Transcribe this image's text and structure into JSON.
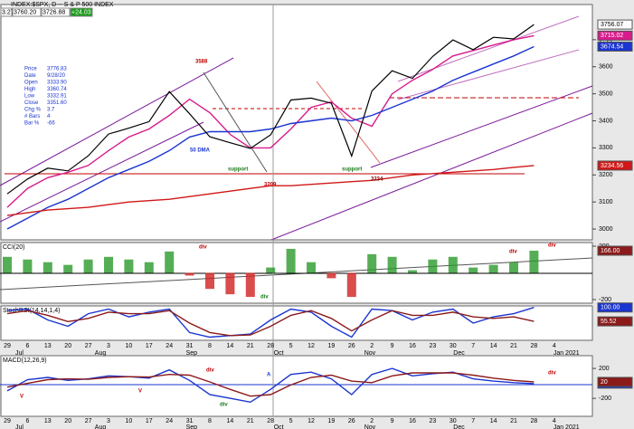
{
  "chart_data": {
    "type": "line",
    "title": "INDEX:$SPX, D -- S & P 500 INDEX",
    "quote": [
      "3.27",
      "3760.20",
      "3726.88",
      "+24.03"
    ],
    "info": [
      [
        "Price",
        "3776.83"
      ],
      [
        "Date",
        "9/28/20"
      ],
      [
        "Open",
        "3333.90"
      ],
      [
        "High",
        "3360.74"
      ],
      [
        "Low",
        "3332.91"
      ],
      [
        "Close",
        "3351.60"
      ],
      [
        "Chg %",
        "3.7"
      ],
      [
        "# Bars",
        "4"
      ],
      [
        "Bar %",
        "-66"
      ]
    ],
    "categories": [
      "29",
      "6",
      "13",
      "20",
      "27",
      "3",
      "10",
      "17",
      "24",
      "31",
      "8",
      "14",
      "21",
      "28",
      "5",
      "12",
      "19",
      "26",
      "2",
      "9",
      "16",
      "23",
      "30",
      "7",
      "14",
      "21",
      "28",
      "4"
    ],
    "months": [
      "Jul",
      "Aug",
      "Sep",
      "Oct",
      "Nov",
      "Dec",
      "Jan 2021"
    ],
    "panels": [
      {
        "ylim": [
          2960,
          3830
        ],
        "yticks": [
          3700,
          3600,
          3500,
          3400,
          3300,
          3200,
          3100,
          3000
        ],
        "series": [
          {
            "color": "#d81b8c",
            "values": [
              3080,
              3150,
              3190,
              3210,
              3235,
              3290,
              3340,
              3370,
              3420,
              3480,
              3430,
              3350,
              3300,
              3300,
              3370,
              3450,
              3470,
              3410,
              3380,
              3500,
              3550,
              3590,
              3640,
              3660,
              3680,
              3700,
              3715.02,
              null
            ]
          },
          {
            "color": "#1a35d0",
            "values": [
              3000,
              3040,
              3080,
              3110,
              3150,
              3190,
              3220,
              3250,
              3290,
              3340,
              3360,
              3360,
              3360,
              3370,
              3390,
              3400,
              3410,
              3400,
              3420,
              3450,
              3480,
              3510,
              3550,
              3580,
              3610,
              3640,
              3674.54,
              null
            ]
          },
          {
            "color": "#d01818",
            "values": [
              3050,
              3060,
              3070,
              3075,
              3080,
              3090,
              3100,
              3105,
              3110,
              3120,
              3130,
              3140,
              3150,
              3160,
              3160,
              3165,
              3170,
              3175,
              3180,
              3190,
              3200,
              3205,
              3210,
              3215,
              3220,
              3228,
              3234.56,
              null
            ]
          },
          {
            "color": "#000000",
            "values": [
              3130,
              3185,
              3225,
              3215,
              3271,
              3351,
              3373,
              3397,
              3508,
              3426,
              3341,
              3319,
              3298,
              3348,
              3477,
              3484,
              3465,
              3270,
              3510,
              3585,
              3557,
              3638,
              3699,
              3663,
              3709,
              3703,
              3756.07,
              null
            ]
          }
        ],
        "annotations": [
          {
            "text": "3588",
            "color": "#c00000"
          },
          {
            "text": "50 DMA",
            "color": "#1a35d0"
          },
          {
            "text": "support",
            "color": "#1a7a1a"
          },
          {
            "text": "3209",
            "color": "#c00000"
          },
          {
            "text": "support",
            "color": "#1a7a1a"
          },
          {
            "text": "3234",
            "color": "#800000"
          }
        ]
      },
      {
        "title": "CCI(20)",
        "ylim": [
          -227,
          227
        ],
        "yticks": [
          200,
          -200
        ],
        "series": [
          {
            "style": "histogram",
            "color": "#2a9a2a",
            "negative_color": "#d02020",
            "label_color": "#8b1a1a",
            "values": [
              120,
              100,
              80,
              60,
              100,
              120,
              100,
              80,
              160,
              -20,
              -120,
              -160,
              -180,
              40,
              180,
              80,
              -40,
              -180,
              140,
              120,
              20,
              100,
              120,
              40,
              60,
              80,
              166,
              null
            ],
            "value_labels": [
              null,
              null,
              null,
              null,
              null,
              null,
              null,
              null,
              null,
              null,
              null,
              null,
              null,
              null,
              null,
              null,
              null,
              null,
              null,
              null,
              null,
              null,
              null,
              null,
              null,
              null,
              "166.00",
              null
            ]
          }
        ],
        "annotations": [
          {
            "text": "div",
            "color": "#c00000"
          },
          {
            "text": "div",
            "color": "#1a7a1a"
          },
          {
            "text": "div",
            "color": "#c00000"
          },
          {
            "text": "div",
            "color": "#c00000"
          }
        ]
      },
      {
        "title": "StochRSI(14,14,1,4)",
        "ylim": [
          -5,
          105
        ],
        "series": [
          {
            "color": "#1a35d0",
            "values": [
              90,
              95,
              60,
              40,
              80,
              95,
              70,
              85,
              95,
              20,
              5,
              10,
              15,
              60,
              95,
              85,
              40,
              5,
              95,
              90,
              60,
              85,
              95,
              50,
              70,
              80,
              100,
              null
            ],
            "value_labels": [
              null,
              null,
              null,
              null,
              null,
              null,
              null,
              null,
              null,
              null,
              null,
              null,
              null,
              null,
              null,
              null,
              null,
              null,
              null,
              null,
              null,
              null,
              null,
              null,
              null,
              null,
              "100.00",
              null
            ]
          },
          {
            "color": "#8b1a1a",
            "values": [
              80,
              90,
              75,
              55,
              65,
              85,
              80,
              80,
              90,
              50,
              20,
              10,
              12,
              40,
              75,
              90,
              65,
              25,
              60,
              90,
              75,
              75,
              85,
              70,
              65,
              70,
              55.52,
              null
            ]
          }
        ],
        "annotations": []
      },
      {
        "title": "MACD(12,26,9)",
        "ylim": [
          -440,
          370
        ],
        "yticks": [
          200,
          -200
        ],
        "series": [
          {
            "color": "#1a35d0",
            "values": [
              -100,
              50,
              80,
              40,
              60,
              100,
              90,
              70,
              180,
              40,
              -150,
              -200,
              -250,
              -80,
              120,
              150,
              60,
              -150,
              120,
              200,
              100,
              130,
              150,
              60,
              30,
              10,
              -3.5,
              null
            ],
            "value_labels": [
              null,
              null,
              null,
              null,
              null,
              null,
              null,
              null,
              null,
              null,
              null,
              null,
              null,
              null,
              null,
              null,
              null,
              null,
              null,
              null,
              null,
              null,
              null,
              null,
              null,
              null,
              "-3.50",
              null
            ]
          },
          {
            "color": "#8b1a1a",
            "values": [
              -50,
              0,
              50,
              60,
              55,
              80,
              90,
              85,
              120,
              110,
              20,
              -80,
              -170,
              -150,
              -20,
              80,
              110,
              30,
              10,
              100,
              140,
              140,
              140,
              110,
              70,
              40,
              20,
              null
            ]
          }
        ],
        "annotations": [
          {
            "text": "V",
            "color": "#c00000"
          },
          {
            "text": "V",
            "color": "#c00000"
          },
          {
            "text": "div",
            "color": "#c00000"
          },
          {
            "text": "div",
            "color": "#1a7a1a"
          },
          {
            "text": "A",
            "color": "#1a35d0"
          },
          {
            "text": "div",
            "color": "#c00000"
          }
        ]
      }
    ]
  }
}
